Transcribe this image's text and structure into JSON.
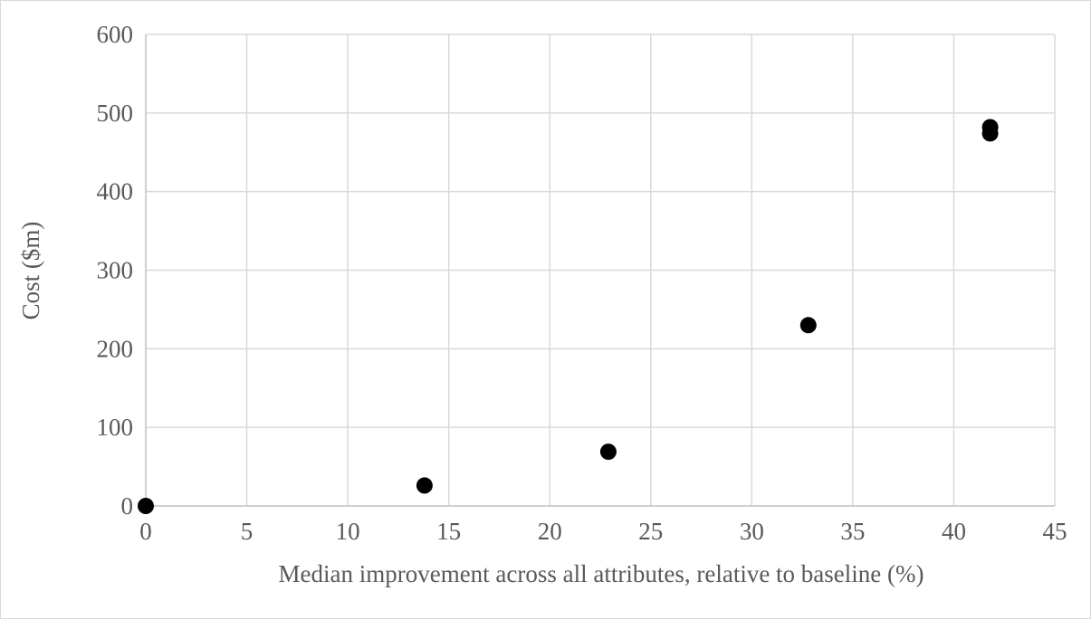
{
  "chart_data": {
    "type": "scatter",
    "title": "",
    "xlabel": "Median improvement across all attributes, relative to baseline (%)",
    "ylabel": "Cost ($m)",
    "xlim": [
      0,
      45
    ],
    "ylim": [
      0,
      600
    ],
    "x_ticks": [
      "0",
      "5",
      "10",
      "15",
      "20",
      "25",
      "30",
      "35",
      "40",
      "45"
    ],
    "y_ticks": [
      "0",
      "100",
      "200",
      "300",
      "400",
      "500",
      "600"
    ],
    "grid": true,
    "legend": "none",
    "marker_color": "#000000",
    "series": [
      {
        "points": [
          {
            "x": 0,
            "y": 0
          },
          {
            "x": 13.8,
            "y": 26
          },
          {
            "x": 22.9,
            "y": 69
          },
          {
            "x": 32.8,
            "y": 230
          },
          {
            "x": 41.8,
            "y": 474
          },
          {
            "x": 41.8,
            "y": 482
          }
        ]
      }
    ]
  }
}
